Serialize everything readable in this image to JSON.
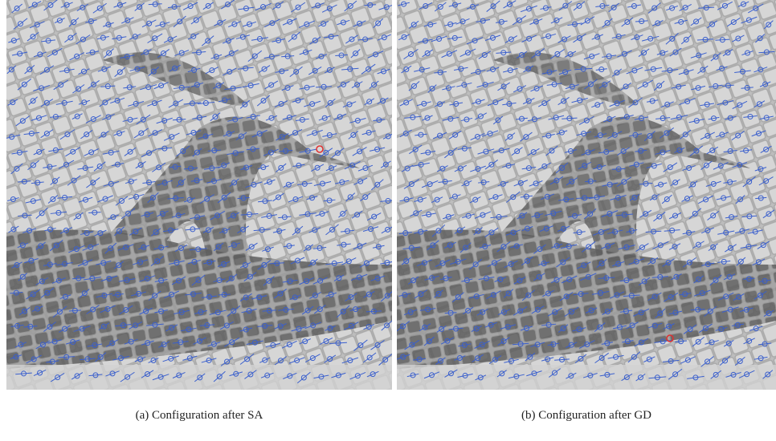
{
  "figure": {
    "panels": [
      {
        "caption": "(a) Configuration after SA"
      },
      {
        "caption": "(b) Configuration after GD"
      }
    ]
  }
}
